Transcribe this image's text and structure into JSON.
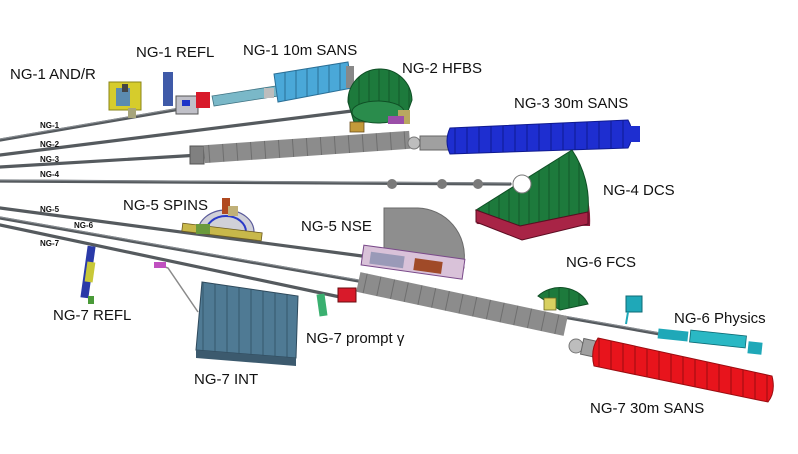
{
  "guides": [
    "NG-1",
    "NG-2",
    "NG-3",
    "NG-4",
    "NG-5",
    "NG-6",
    "NG-7"
  ],
  "instruments": {
    "ng1_andr": "NG-1 AND/R",
    "ng1_refl": "NG-1 REFL",
    "ng1_sans": "NG-1 10m SANS",
    "ng2_hfbs": "NG-2 HFBS",
    "ng3_sans": "NG-3 30m SANS",
    "ng4_dcs": "NG-4 DCS",
    "ng5_spins": "NG-5 SPINS",
    "ng5_nse": "NG-5 NSE",
    "ng6_fcs": "NG-6 FCS",
    "ng6_physics": "NG-6 Physics",
    "ng7_refl": "NG-7 REFL",
    "ng7_int": "NG-7 INT",
    "ng7_prompt": "NG-7 prompt γ",
    "ng7_sans": "NG-7 30m SANS"
  },
  "colors": {
    "guide": "#555a5e",
    "sans_blue": "#1e2ed0",
    "sans_red": "#e8141c",
    "sans_cyan": "#4aa8d8",
    "detector_green": "#1d7a3c",
    "nse_gray": "#8e8e8e",
    "int_slate": "#4f7a94"
  }
}
